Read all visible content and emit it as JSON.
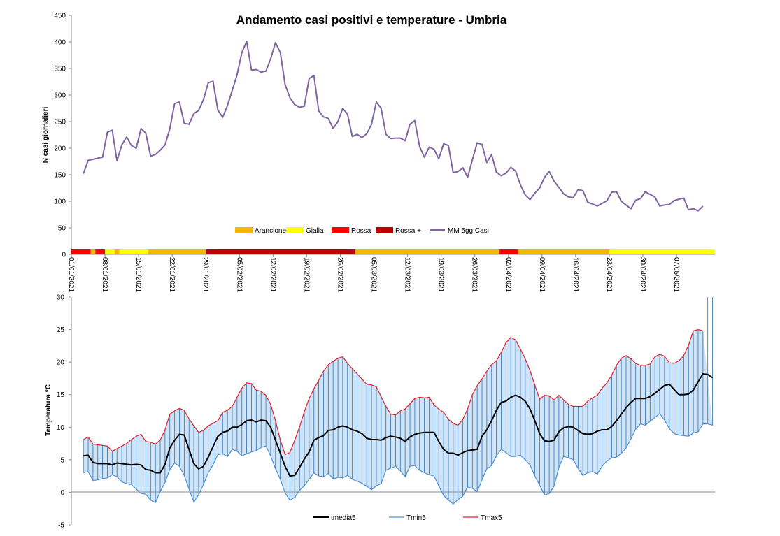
{
  "chart_data": [
    {
      "type": "line",
      "title": "Andamento casi positivi e temperature - Umbria",
      "ylabel": "N casi giornalieri",
      "ylim": [
        0,
        450
      ],
      "yticks": [
        0,
        50,
        100,
        150,
        200,
        250,
        300,
        350,
        400,
        450
      ],
      "x_start": "01/01/2021",
      "x_end": "14/05/2021",
      "x_ticks": [
        "01/01/2021",
        "08/01/2021",
        "15/01/2021",
        "22/01/2021",
        "29/01/2021",
        "05/02/2021",
        "12/02/2021",
        "19/02/2021",
        "26/02/2021",
        "05/03/2021",
        "12/03/2021",
        "19/03/2021",
        "26/03/2021",
        "02/04/2021",
        "09/04/2021",
        "16/04/2021",
        "23/04/2021",
        "30/04/2021",
        "07/05/2021"
      ],
      "legend": [
        "Arancione",
        "Gialla",
        "Rossa",
        "Rossa +",
        "MM 5gg Casi"
      ],
      "legend_position": "bottom",
      "zone_colors": {
        "Arancione": "#f5b800",
        "Gialla": "#ffff00",
        "Rossa": "#ff0000",
        "Rossa +": "#c00000"
      },
      "zones": [
        {
          "from": "01/01/2021",
          "to": "04/01/2021",
          "zone": "Rossa"
        },
        {
          "from": "05/01/2021",
          "to": "05/01/2021",
          "zone": "Arancione"
        },
        {
          "from": "06/01/2021",
          "to": "07/01/2021",
          "zone": "Rossa"
        },
        {
          "from": "08/01/2021",
          "to": "09/01/2021",
          "zone": "Gialla"
        },
        {
          "from": "10/01/2021",
          "to": "10/01/2021",
          "zone": "Arancione"
        },
        {
          "from": "11/01/2021",
          "to": "16/01/2021",
          "zone": "Gialla"
        },
        {
          "from": "17/01/2021",
          "to": "28/01/2021",
          "zone": "Arancione"
        },
        {
          "from": "29/01/2021",
          "to": "28/02/2021",
          "zone": "Rossa +"
        },
        {
          "from": "01/03/2021",
          "to": "30/03/2021",
          "zone": "Arancione"
        },
        {
          "from": "31/03/2021",
          "to": "03/04/2021",
          "zone": "Rossa"
        },
        {
          "from": "04/04/2021",
          "to": "22/04/2021",
          "zone": "Arancione"
        },
        {
          "from": "23/04/2021",
          "to": "14/05/2021",
          "zone": "Gialla"
        }
      ],
      "series": [
        {
          "name": "MM 5gg Casi",
          "color": "#7f63a2",
          "start": "03/01/2021",
          "values": [
            152,
            177,
            179,
            181,
            183,
            230,
            234,
            176,
            206,
            221,
            205,
            200,
            237,
            228,
            185,
            188,
            196,
            206,
            236,
            284,
            287,
            247,
            245,
            265,
            271,
            291,
            323,
            326,
            272,
            258,
            280,
            309,
            338,
            380,
            401,
            347,
            348,
            343,
            345,
            368,
            399,
            380,
            320,
            295,
            282,
            277,
            279,
            331,
            337,
            270,
            259,
            256,
            237,
            250,
            275,
            264,
            222,
            226,
            220,
            227,
            245,
            287,
            275,
            226,
            218,
            219,
            219,
            214,
            245,
            252,
            203,
            183,
            202,
            198,
            180,
            208,
            205,
            154,
            156,
            163,
            145,
            178,
            210,
            207,
            173,
            188,
            155,
            148,
            153,
            164,
            157,
            131,
            112,
            103,
            115,
            125,
            145,
            156,
            138,
            126,
            114,
            108,
            107,
            122,
            120,
            98,
            95,
            91,
            96,
            101,
            117,
            118,
            100,
            93,
            86,
            102,
            105,
            118,
            113,
            108,
            91,
            93,
            94,
            101,
            104,
            106,
            84,
            86,
            82,
            91
          ]
        }
      ]
    },
    {
      "type": "area",
      "ylabel": "Temperatura °C",
      "ylim": [
        -5,
        30
      ],
      "yticks": [
        -5,
        0,
        5,
        10,
        15,
        20,
        25,
        30
      ],
      "x_start": "01/01/2021",
      "x_end": "14/05/2021",
      "legend": [
        "tmedia5",
        "Tmin5",
        "Tmax5"
      ],
      "legend_position": "bottom",
      "fill_color": "#cfe4f7",
      "hatch_color": "#2f6fb0",
      "series": [
        {
          "name": "tmedia5",
          "color": "#000000",
          "start": "03/01/2021",
          "values": [
            5.6,
            5.7,
            4.6,
            4.4,
            4.4,
            4.4,
            4.2,
            4.5,
            4.4,
            4.3,
            4.2,
            4.3,
            4.2,
            3.5,
            3.4,
            3.0,
            3.0,
            4.3,
            6.8,
            8.0,
            8.9,
            8.8,
            6.6,
            4.4,
            3.6,
            4.0,
            5.4,
            7.0,
            8.6,
            9.2,
            9.4,
            10.0,
            10.0,
            10.4,
            11.0,
            11.1,
            10.8,
            11.1,
            11.0,
            10.0,
            8.0,
            6.0,
            4.0,
            2.5,
            2.6,
            3.8,
            5.1,
            6.2,
            8.0,
            8.4,
            8.7,
            9.5,
            9.6,
            10.0,
            10.2,
            10.0,
            9.6,
            9.4,
            9.0,
            8.3,
            8.1,
            8.1,
            8.0,
            8.4,
            8.6,
            8.5,
            8.3,
            7.8,
            8.5,
            8.9,
            9.1,
            9.2,
            9.2,
            9.2,
            7.8,
            6.6,
            6.0,
            6.0,
            5.7,
            6.1,
            6.4,
            6.5,
            6.6,
            8.6,
            9.6,
            11.0,
            12.6,
            13.8,
            14.0,
            14.6,
            14.9,
            14.6,
            14.0,
            12.8,
            11.0,
            9.0,
            7.9,
            7.8,
            8.0,
            9.3,
            9.9,
            10.1,
            10.0,
            9.5,
            9.0,
            8.9,
            9.0,
            9.4,
            9.6,
            9.6,
            10.1,
            11.0,
            12.0,
            13.0,
            13.8,
            14.4,
            14.4,
            14.4,
            14.7,
            15.2,
            15.8,
            16.4,
            16.6,
            15.8,
            15.0,
            15.0,
            15.1,
            15.7,
            17.0,
            18.2,
            18.1,
            17.6
          ]
        },
        {
          "name": "Tmin5",
          "color": "#4a90d9",
          "start": "03/01/2021",
          "values": [
            3.0,
            3.2,
            1.8,
            1.9,
            2.1,
            2.2,
            2.7,
            2.4,
            1.6,
            1.3,
            1.2,
            0.5,
            -0.2,
            -0.3,
            -1.2,
            -1.6,
            0.1,
            1.5,
            3.5,
            4.5,
            4.0,
            2.6,
            0.5,
            -1.5,
            -0.4,
            1.2,
            3.0,
            4.2,
            5.8,
            5.9,
            5.5,
            6.6,
            6.3,
            5.6,
            5.9,
            6.2,
            6.4,
            6.9,
            7.1,
            5.6,
            3.6,
            2.0,
            -0.1,
            -1.2,
            -0.8,
            0.3,
            1.0,
            2.0,
            3.0,
            2.5,
            2.4,
            2.9,
            2.1,
            2.3,
            2.2,
            2.6,
            2.0,
            1.7,
            1.4,
            0.9,
            0.4,
            1.0,
            1.3,
            3.4,
            3.7,
            4.0,
            3.3,
            2.4,
            4.0,
            4.1,
            3.4,
            3.0,
            2.7,
            2.5,
            1.0,
            -0.5,
            -1.2,
            -1.8,
            -1.1,
            -0.6,
            0.8,
            0.6,
            0.1,
            1.9,
            3.6,
            4.1,
            5.6,
            6.6,
            6.1,
            5.5,
            5.5,
            5.7,
            5.0,
            4.2,
            2.5,
            1.1,
            -0.4,
            -0.2,
            0.9,
            3.8,
            5.5,
            5.3,
            5.0,
            3.7,
            2.6,
            3.0,
            3.2,
            2.8,
            4.0,
            4.8,
            5.3,
            5.4,
            6.0,
            6.8,
            8.2,
            9.7,
            10.5,
            10.3,
            10.9,
            11.5,
            12.1,
            11.1,
            9.8,
            9.0,
            8.8,
            8.7,
            8.6,
            9.1,
            9.3,
            10.5,
            10.5,
            10.3
          ]
        },
        {
          "name": "Tmax5",
          "color": "#e0202a",
          "start": "03/01/2021",
          "values": [
            8.1,
            8.5,
            7.4,
            7.3,
            7.2,
            7.1,
            6.3,
            6.7,
            7.1,
            7.5,
            8.1,
            8.6,
            8.9,
            7.8,
            7.7,
            7.4,
            8.0,
            9.6,
            12.0,
            12.5,
            12.9,
            12.6,
            11.3,
            10.2,
            9.2,
            9.5,
            10.2,
            10.6,
            11.0,
            12.3,
            12.6,
            13.2,
            14.6,
            16.0,
            16.8,
            16.7,
            15.7,
            15.5,
            14.9,
            13.5,
            11.0,
            8.0,
            5.8,
            6.1,
            8.0,
            10.0,
            12.4,
            14.4,
            15.9,
            17.2,
            18.6,
            19.6,
            20.1,
            20.6,
            20.8,
            19.8,
            19.0,
            18.2,
            17.4,
            16.6,
            16.5,
            16.2,
            14.7,
            13.2,
            12.0,
            11.9,
            12.5,
            12.8,
            13.6,
            14.4,
            14.6,
            14.5,
            14.6,
            13.4,
            12.8,
            12.3,
            11.2,
            10.6,
            10.3,
            11.2,
            12.8,
            15.0,
            16.4,
            17.4,
            18.6,
            19.6,
            20.2,
            21.5,
            23.0,
            23.8,
            23.4,
            22.0,
            20.5,
            18.7,
            16.5,
            14.3,
            14.9,
            14.8,
            14.2,
            14.9,
            14.2,
            13.5,
            13.2,
            13.2,
            13.2,
            14.0,
            14.5,
            14.9,
            16.0,
            16.8,
            18.0,
            19.5,
            20.6,
            21.0,
            20.5,
            19.8,
            19.5,
            19.5,
            19.7,
            20.8,
            21.2,
            20.9,
            19.9,
            19.8,
            20.2,
            21.0,
            22.6,
            24.8,
            25.0,
            24.8
          ]
        }
      ]
    }
  ]
}
